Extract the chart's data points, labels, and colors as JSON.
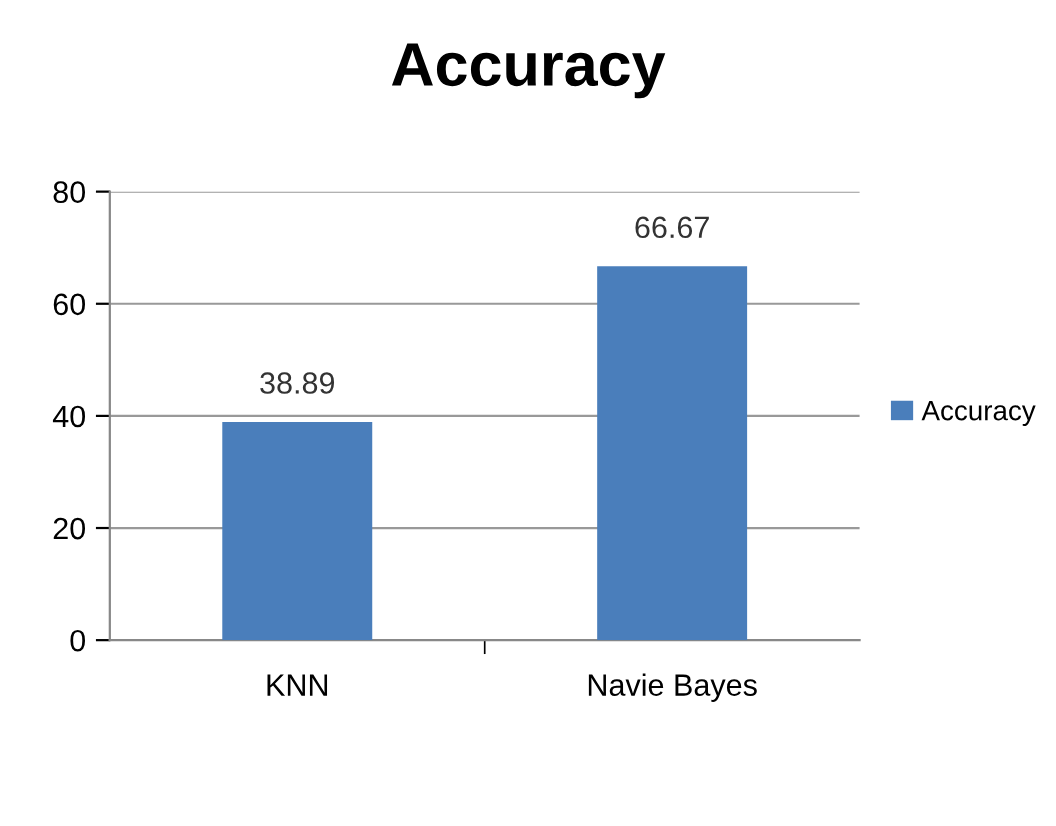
{
  "chart_data": {
    "type": "bar",
    "title": "Accuracy",
    "categories": [
      "KNN",
      "Navie Bayes"
    ],
    "series": [
      {
        "name": "Accuracy",
        "color": "#4a7ebb",
        "values": [
          38.89,
          66.67
        ]
      }
    ],
    "ylim": [
      0,
      80
    ],
    "yticks": [
      0,
      20,
      40,
      60,
      80
    ],
    "grid": "y",
    "legend": "right",
    "data_labels": true
  }
}
